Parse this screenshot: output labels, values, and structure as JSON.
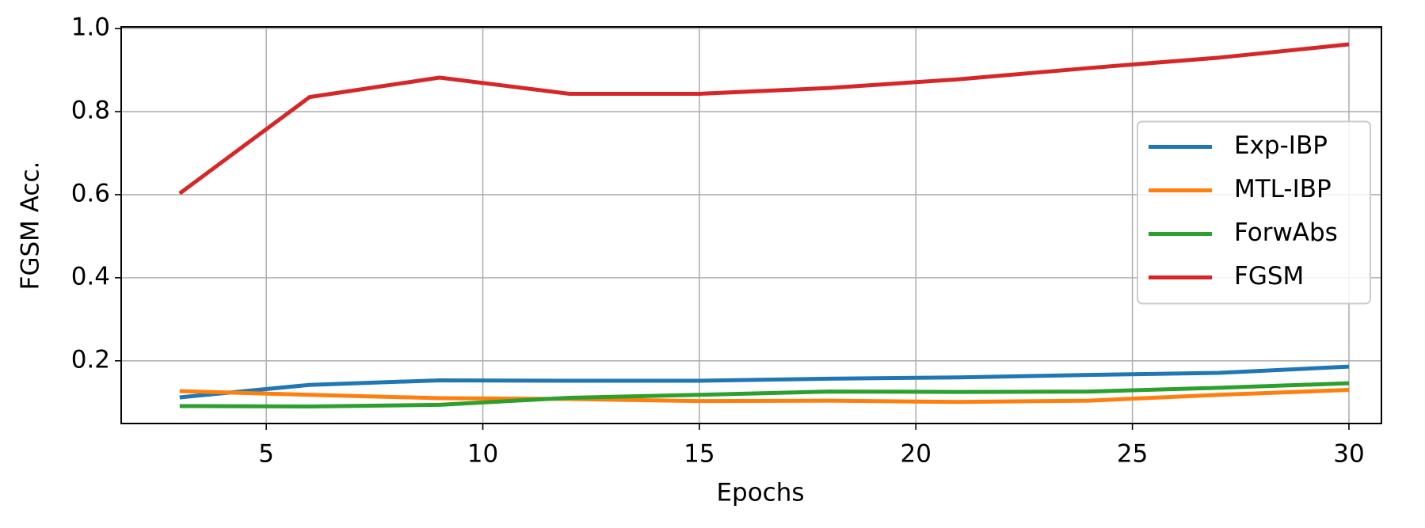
{
  "chart_data": {
    "type": "line",
    "x": [
      3,
      6,
      9,
      12,
      15,
      18,
      21,
      24,
      27,
      30
    ],
    "xlabel": "Epochs",
    "ylabel": "FGSM Acc.",
    "xlim": [
      1.65,
      30.75
    ],
    "xticks": [
      5,
      10,
      15,
      20,
      25,
      30
    ],
    "ylim": [
      0.049,
      1.004
    ],
    "yticks": [
      0.2,
      0.4,
      0.6,
      0.8,
      {
        "value": 1,
        "label": "1.0"
      }
    ],
    "grid": true,
    "legend": "right",
    "series": [
      {
        "name": "Exp-IBP",
        "color": "#1f77b4",
        "values": [
          0.112,
          0.142,
          0.153,
          0.152,
          0.152,
          0.157,
          0.16,
          0.166,
          0.171,
          0.186
        ]
      },
      {
        "name": "MTL-IBP",
        "color": "#ff7f0e",
        "values": [
          0.127,
          0.118,
          0.11,
          0.108,
          0.103,
          0.104,
          0.101,
          0.104,
          0.118,
          0.13
        ]
      },
      {
        "name": "ForwAbs",
        "color": "#2ca02c",
        "values": [
          0.091,
          0.09,
          0.094,
          0.111,
          0.118,
          0.126,
          0.125,
          0.126,
          0.135,
          0.146
        ]
      },
      {
        "name": "FGSM",
        "color": "#d62728",
        "values": [
          0.603,
          0.835,
          0.882,
          0.843,
          0.843,
          0.857,
          0.878,
          0.905,
          0.93,
          0.962
        ]
      }
    ]
  }
}
